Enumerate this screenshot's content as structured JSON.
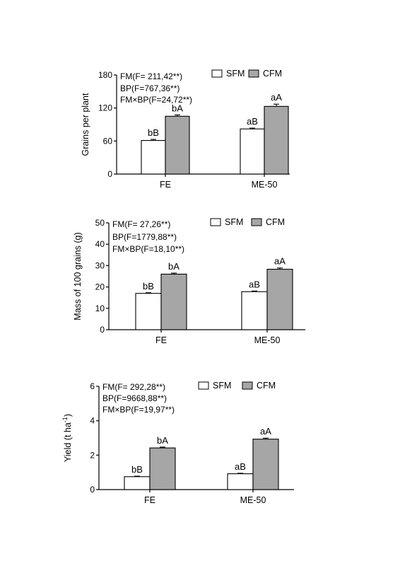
{
  "chart_data": [
    {
      "type": "bar",
      "ylabel": "Grains per plant",
      "ylim": [
        0,
        180
      ],
      "yticks": [
        0,
        60,
        120,
        180
      ],
      "categories": [
        "FE",
        "ME-50"
      ],
      "series": [
        {
          "name": "SFM",
          "color": "#ffffff",
          "values": [
            61,
            82
          ],
          "errors": [
            2,
            1.5
          ],
          "labels": [
            "bB",
            "aB"
          ]
        },
        {
          "name": "CFM",
          "color": "#a6a6a6",
          "values": [
            105,
            123
          ],
          "errors": [
            2.5,
            4
          ],
          "labels": [
            "bA",
            "aA"
          ]
        }
      ],
      "stats": [
        "FM(F= 211,42**)",
        "BP(F=767,36**)",
        "FM×BP(F=24,72**)"
      ],
      "legend": "top-right"
    },
    {
      "type": "bar",
      "ylabel": "Mass of 100 grains (g)",
      "ylim": [
        0,
        50
      ],
      "yticks": [
        0,
        10,
        20,
        30,
        40,
        50
      ],
      "categories": [
        "FE",
        "ME-50"
      ],
      "series": [
        {
          "name": "SFM",
          "color": "#ffffff",
          "values": [
            17,
            17.8
          ],
          "errors": [
            0.3,
            0.3
          ],
          "labels": [
            "bB",
            "aB"
          ]
        },
        {
          "name": "CFM",
          "color": "#a6a6a6",
          "values": [
            26,
            28.3
          ],
          "errors": [
            0.5,
            0.6
          ],
          "labels": [
            "bA",
            "aA"
          ]
        }
      ],
      "stats": [
        "FM(F= 27,26**)",
        "BP(F=1779,88**)",
        "FM×BP(F=18,10**)"
      ],
      "legend": "top-right"
    },
    {
      "type": "bar",
      "ylabel": "Yield (t ha",
      "ylabel_sup": "-1",
      "ylabel_end": ")",
      "ylim": [
        0,
        6
      ],
      "yticks": [
        0,
        2,
        4,
        6
      ],
      "categories": [
        "FE",
        "ME-50"
      ],
      "series": [
        {
          "name": "SFM",
          "color": "#ffffff",
          "values": [
            0.75,
            0.92
          ],
          "errors": [
            0.03,
            0.03
          ],
          "labels": [
            "bB",
            "aB"
          ]
        },
        {
          "name": "CFM",
          "color": "#a6a6a6",
          "values": [
            2.42,
            2.93
          ],
          "errors": [
            0.05,
            0.06
          ],
          "labels": [
            "bA",
            "aA"
          ]
        }
      ],
      "stats": [
        "FM(F= 292,28**)",
        "BP(F=9668,88**)",
        "FM×BP(F=19,97**)"
      ],
      "legend": "top-right"
    }
  ]
}
